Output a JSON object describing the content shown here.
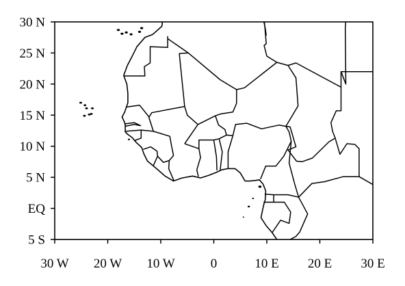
{
  "map": {
    "projection": "equirectangular",
    "lon_range": [
      -30,
      30
    ],
    "lat_range": [
      -5,
      30
    ],
    "lon_ticks": [
      {
        "value": -30,
        "label": "30 W"
      },
      {
        "value": -20,
        "label": "20 W"
      },
      {
        "value": -10,
        "label": "10 W"
      },
      {
        "value": 0,
        "label": "0"
      },
      {
        "value": 10,
        "label": "10 E"
      },
      {
        "value": 20,
        "label": "20 E"
      },
      {
        "value": 30,
        "label": "30 E"
      }
    ],
    "lat_ticks": [
      {
        "value": 30,
        "label": "30 N"
      },
      {
        "value": 25,
        "label": "25 N"
      },
      {
        "value": 20,
        "label": "20 N"
      },
      {
        "value": 15,
        "label": "15 N"
      },
      {
        "value": 10,
        "label": "10 N"
      },
      {
        "value": 5,
        "label": "5 N"
      },
      {
        "value": 0,
        "label": "EQ"
      },
      {
        "value": -5,
        "label": "5 S"
      }
    ],
    "colors": {
      "ocean": "#ffffff",
      "land_neutral": "#ffffff",
      "positive_light": "#a6e6f4",
      "positive_mid": "#5fc8ee",
      "positive_strong": "#3a8de0",
      "positive_max": "#2b55c8",
      "negative_light": "#ffe38a",
      "negative_mid": "#ffc23c",
      "negative_strong": "#ff8c1a",
      "negative_max": "#d93020",
      "border": "#000000"
    }
  }
}
